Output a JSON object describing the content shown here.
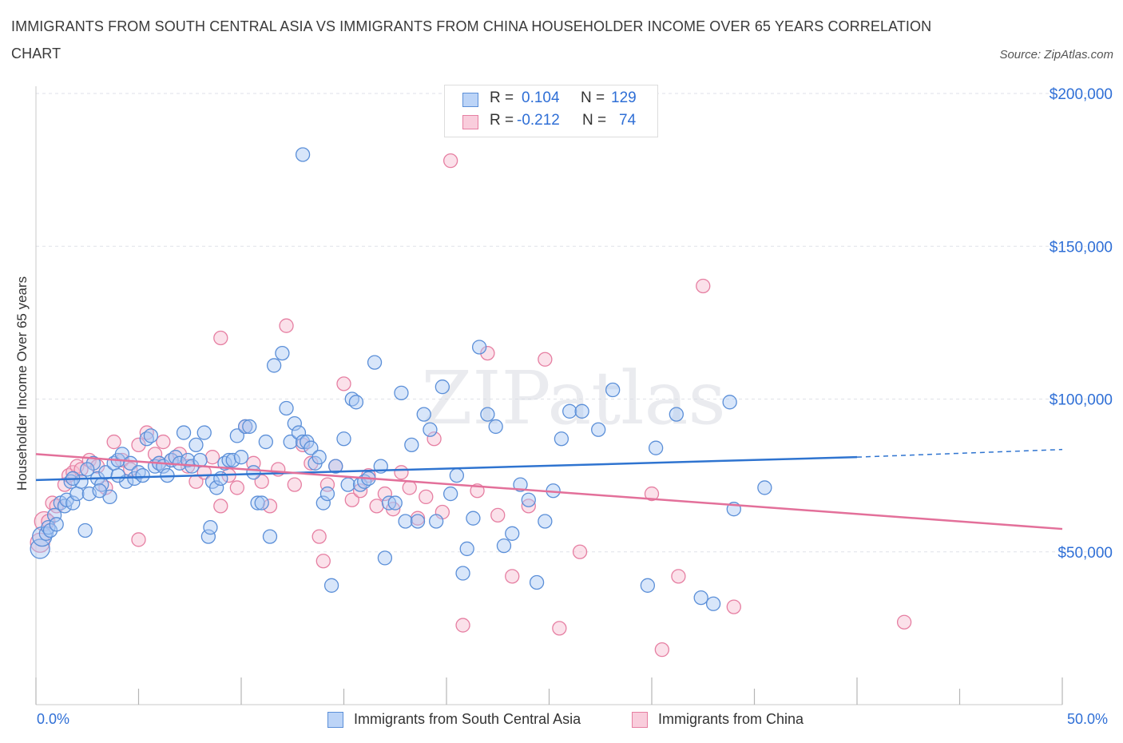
{
  "title": "IMMIGRANTS FROM SOUTH CENTRAL ASIA VS IMMIGRANTS FROM CHINA HOUSEHOLDER INCOME OVER 65 YEARS CORRELATION CHART",
  "source": "Source: ZipAtlas.com",
  "watermark": "ZIPatlas",
  "colors": {
    "blue_fill": "#a8c8f5",
    "blue_stroke": "#5b8fd8",
    "blue_line": "#2f74d0",
    "pink_fill": "#f7bcd0",
    "pink_stroke": "#e67fa2",
    "pink_line": "#e3709a",
    "axis_text": "#2f6fd6"
  },
  "legend": {
    "rows": [
      {
        "r_label": "R =",
        "r_value": "0.104",
        "n_label": "N =",
        "n_value": "129"
      },
      {
        "r_label": "R =",
        "r_value": "-0.212",
        "n_label": "N =",
        "n_value": "74"
      }
    ]
  },
  "bottom_legend": [
    "Immigrants from South Central Asia",
    "Immigrants from China"
  ],
  "chart_data": {
    "type": "scatter",
    "title": "IMMIGRANTS FROM SOUTH CENTRAL ASIA VS IMMIGRANTS FROM CHINA HOUSEHOLDER INCOME OVER 65 YEARS CORRELATION CHART",
    "xlabel": "",
    "ylabel": "Householder Income Over 65 years",
    "xlim": [
      0,
      50
    ],
    "ylim": [
      0,
      200000
    ],
    "x_tick_labels": [
      "0.0%",
      "50.0%"
    ],
    "y_tick_labels": [
      "$50,000",
      "$100,000",
      "$150,000",
      "$200,000"
    ],
    "y_ticks": [
      50000,
      100000,
      150000,
      200000
    ],
    "grid": true,
    "legend_position": "top-center",
    "series": [
      {
        "name": "Immigrants from South Central Asia",
        "trend": {
          "x": [
            0,
            40
          ],
          "y": [
            73500,
            81000
          ],
          "dashed_to": [
            50,
            83500
          ]
        },
        "points": [
          [
            0.2,
            51000
          ],
          [
            0.3,
            55000
          ],
          [
            0.5,
            56000
          ],
          [
            0.6,
            58000
          ],
          [
            0.7,
            57000
          ],
          [
            0.9,
            62000
          ],
          [
            1.0,
            59000
          ],
          [
            1.2,
            66000
          ],
          [
            1.4,
            65000
          ],
          [
            1.5,
            67000
          ],
          [
            1.7,
            73000
          ],
          [
            1.8,
            66000
          ],
          [
            2.0,
            69000
          ],
          [
            2.2,
            73000
          ],
          [
            2.4,
            57000
          ],
          [
            2.6,
            69000
          ],
          [
            2.8,
            79000
          ],
          [
            3.0,
            74000
          ],
          [
            3.2,
            72000
          ],
          [
            3.4,
            76000
          ],
          [
            3.6,
            68000
          ],
          [
            3.8,
            79000
          ],
          [
            4.0,
            80000
          ],
          [
            4.2,
            82000
          ],
          [
            4.4,
            73000
          ],
          [
            4.6,
            79000
          ],
          [
            4.8,
            74000
          ],
          [
            5.0,
            76000
          ],
          [
            5.2,
            75000
          ],
          [
            5.4,
            87000
          ],
          [
            5.6,
            88000
          ],
          [
            5.8,
            78000
          ],
          [
            6.0,
            79000
          ],
          [
            6.2,
            78000
          ],
          [
            6.4,
            75000
          ],
          [
            6.6,
            80000
          ],
          [
            6.8,
            81000
          ],
          [
            7.0,
            79000
          ],
          [
            7.2,
            89000
          ],
          [
            7.4,
            80000
          ],
          [
            7.6,
            78000
          ],
          [
            7.8,
            85000
          ],
          [
            8.0,
            80000
          ],
          [
            8.2,
            89000
          ],
          [
            8.4,
            55000
          ],
          [
            8.6,
            73000
          ],
          [
            8.8,
            71000
          ],
          [
            9.0,
            74000
          ],
          [
            9.2,
            79000
          ],
          [
            9.4,
            80000
          ],
          [
            9.6,
            80000
          ],
          [
            9.8,
            88000
          ],
          [
            10.0,
            81000
          ],
          [
            10.2,
            91000
          ],
          [
            10.4,
            91000
          ],
          [
            10.6,
            76000
          ],
          [
            10.8,
            66000
          ],
          [
            11.0,
            66000
          ],
          [
            11.2,
            86000
          ],
          [
            11.4,
            55000
          ],
          [
            11.6,
            111000
          ],
          [
            12.0,
            115000
          ],
          [
            12.2,
            97000
          ],
          [
            12.4,
            86000
          ],
          [
            12.6,
            92000
          ],
          [
            12.8,
            89000
          ],
          [
            13.0,
            86000
          ],
          [
            13.2,
            86000
          ],
          [
            13.4,
            84000
          ],
          [
            13.6,
            79000
          ],
          [
            13.8,
            81000
          ],
          [
            14.0,
            66000
          ],
          [
            14.2,
            69000
          ],
          [
            14.4,
            39000
          ],
          [
            14.6,
            78000
          ],
          [
            15.0,
            87000
          ],
          [
            15.2,
            72000
          ],
          [
            15.4,
            100000
          ],
          [
            15.6,
            99000
          ],
          [
            15.8,
            72000
          ],
          [
            16.0,
            73000
          ],
          [
            16.2,
            74000
          ],
          [
            16.5,
            112000
          ],
          [
            16.8,
            78000
          ],
          [
            17.0,
            48000
          ],
          [
            17.2,
            66000
          ],
          [
            17.5,
            66000
          ],
          [
            17.8,
            102000
          ],
          [
            18.0,
            60000
          ],
          [
            18.3,
            85000
          ],
          [
            18.6,
            60000
          ],
          [
            18.9,
            95000
          ],
          [
            19.2,
            90000
          ],
          [
            19.5,
            60000
          ],
          [
            19.8,
            104000
          ],
          [
            20.2,
            69000
          ],
          [
            20.5,
            75000
          ],
          [
            20.8,
            43000
          ],
          [
            21.0,
            51000
          ],
          [
            21.3,
            61000
          ],
          [
            21.6,
            117000
          ],
          [
            22.0,
            95000
          ],
          [
            22.4,
            91000
          ],
          [
            22.8,
            52000
          ],
          [
            23.2,
            56000
          ],
          [
            23.6,
            72000
          ],
          [
            24.0,
            67000
          ],
          [
            24.4,
            40000
          ],
          [
            24.8,
            60000
          ],
          [
            25.2,
            70000
          ],
          [
            25.6,
            87000
          ],
          [
            26.0,
            96000
          ],
          [
            26.6,
            96000
          ],
          [
            27.4,
            90000
          ],
          [
            28.1,
            103000
          ],
          [
            29.8,
            39000
          ],
          [
            30.2,
            84000
          ],
          [
            31.2,
            95000
          ],
          [
            32.4,
            35000
          ],
          [
            33.0,
            33000
          ],
          [
            33.8,
            99000
          ],
          [
            34.0,
            64000
          ],
          [
            35.5,
            71000
          ],
          [
            13.0,
            180000
          ],
          [
            8.5,
            58000
          ],
          [
            4.0,
            75000
          ],
          [
            2.5,
            77000
          ],
          [
            1.8,
            74000
          ],
          [
            3.1,
            70000
          ]
        ]
      },
      {
        "name": "Immigrants from China",
        "trend": {
          "x": [
            0,
            50
          ],
          "y": [
            82000,
            57500
          ]
        },
        "points": [
          [
            0.2,
            53000
          ],
          [
            0.4,
            60000
          ],
          [
            0.6,
            60000
          ],
          [
            0.8,
            66000
          ],
          [
            1.0,
            65000
          ],
          [
            1.4,
            72000
          ],
          [
            1.6,
            75000
          ],
          [
            1.8,
            76000
          ],
          [
            2.0,
            78000
          ],
          [
            2.2,
            77000
          ],
          [
            2.6,
            80000
          ],
          [
            3.0,
            78000
          ],
          [
            3.4,
            71000
          ],
          [
            3.8,
            86000
          ],
          [
            4.2,
            80000
          ],
          [
            4.6,
            77000
          ],
          [
            5.0,
            85000
          ],
          [
            5.4,
            89000
          ],
          [
            5.8,
            82000
          ],
          [
            6.0,
            79000
          ],
          [
            6.2,
            86000
          ],
          [
            6.6,
            80000
          ],
          [
            7.0,
            82000
          ],
          [
            7.4,
            78000
          ],
          [
            7.8,
            73000
          ],
          [
            8.2,
            76000
          ],
          [
            8.6,
            81000
          ],
          [
            9.0,
            65000
          ],
          [
            9.4,
            75000
          ],
          [
            9.8,
            71000
          ],
          [
            10.2,
            91000
          ],
          [
            10.6,
            79000
          ],
          [
            11.0,
            73000
          ],
          [
            11.4,
            65000
          ],
          [
            11.8,
            77000
          ],
          [
            12.2,
            124000
          ],
          [
            12.6,
            72000
          ],
          [
            13.0,
            85000
          ],
          [
            13.4,
            79000
          ],
          [
            13.8,
            55000
          ],
          [
            14.2,
            72000
          ],
          [
            14.6,
            78000
          ],
          [
            15.0,
            105000
          ],
          [
            15.4,
            67000
          ],
          [
            15.8,
            70000
          ],
          [
            16.2,
            75000
          ],
          [
            16.6,
            65000
          ],
          [
            17.0,
            69000
          ],
          [
            17.4,
            64000
          ],
          [
            17.8,
            76000
          ],
          [
            18.2,
            71000
          ],
          [
            18.6,
            61000
          ],
          [
            19.0,
            68000
          ],
          [
            19.4,
            87000
          ],
          [
            19.8,
            63000
          ],
          [
            20.2,
            178000
          ],
          [
            20.8,
            26000
          ],
          [
            21.5,
            70000
          ],
          [
            22.0,
            115000
          ],
          [
            22.5,
            62000
          ],
          [
            23.2,
            42000
          ],
          [
            24.0,
            65000
          ],
          [
            24.8,
            113000
          ],
          [
            25.5,
            25000
          ],
          [
            26.5,
            50000
          ],
          [
            30.0,
            69000
          ],
          [
            30.5,
            18000
          ],
          [
            31.3,
            42000
          ],
          [
            32.5,
            137000
          ],
          [
            34.0,
            32000
          ],
          [
            42.3,
            27000
          ],
          [
            5.0,
            54000
          ],
          [
            9.0,
            120000
          ],
          [
            14.0,
            47000
          ]
        ]
      }
    ]
  }
}
